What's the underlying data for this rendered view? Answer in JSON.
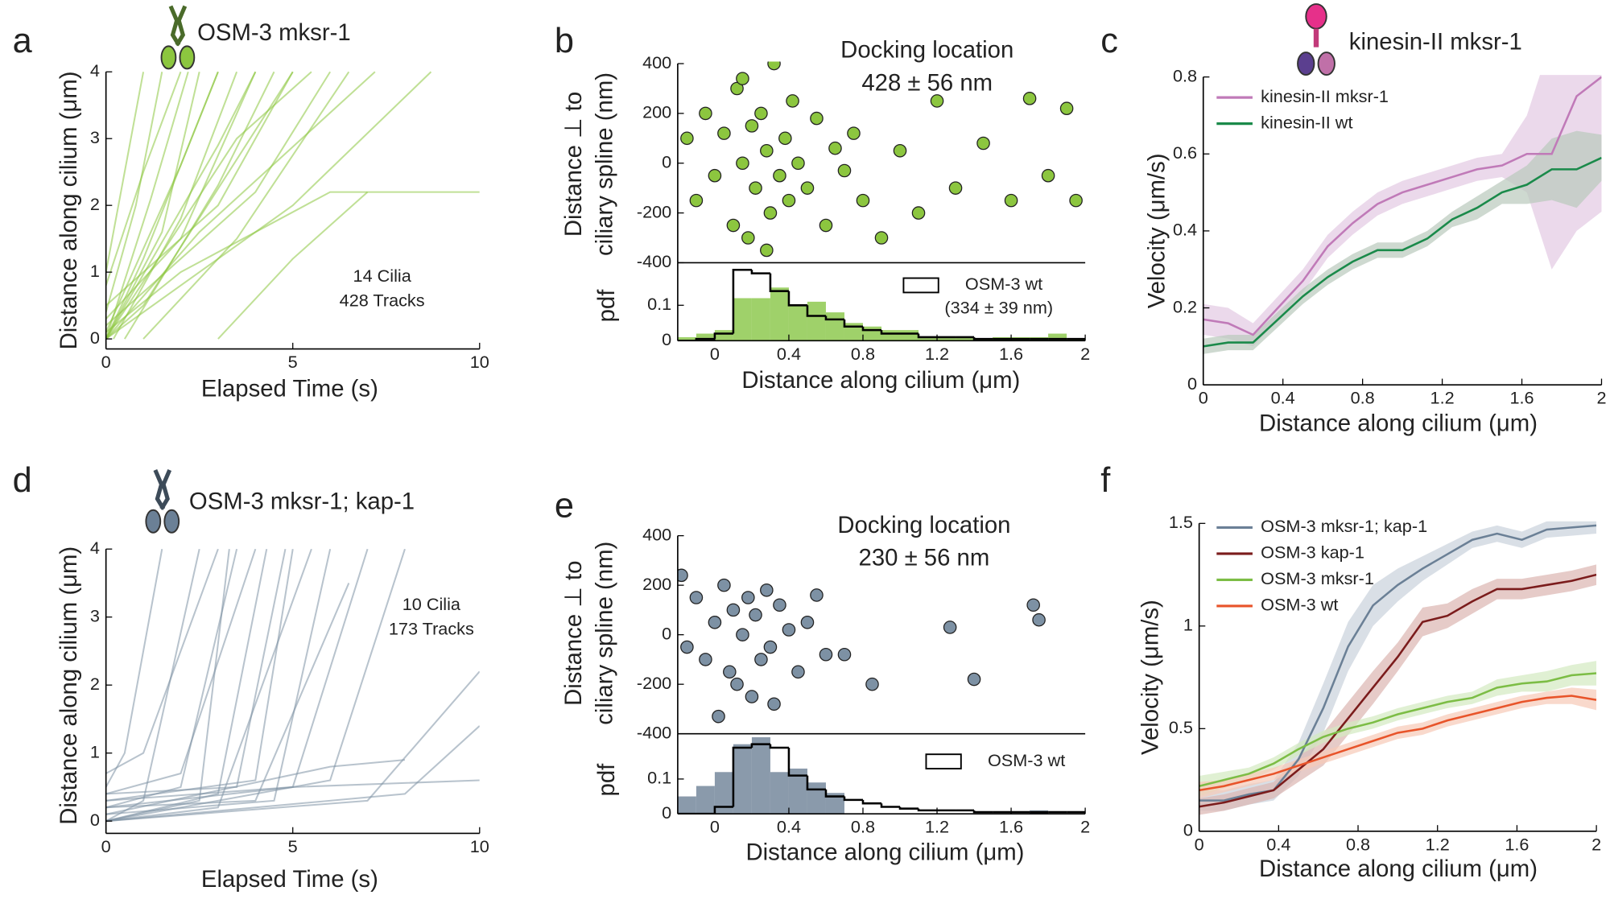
{
  "chart_data": [
    {
      "type": "tracks",
      "panel": "a",
      "title": "OSM-3 mksr-1",
      "annotation": [
        "14 Cilia",
        "428 Tracks"
      ],
      "xlabel": "Elapsed Time (s)",
      "ylabel": "Distance along cilium (μm)",
      "color": "#8cc63f",
      "xlim": [
        0,
        10
      ],
      "ylim": [
        -0.15,
        4
      ],
      "xticks": [
        0,
        5,
        10
      ],
      "yticks": [
        0,
        1,
        2,
        3,
        4
      ],
      "tracks": [
        {
          "x": [
            0,
            1,
            3
          ],
          "y": [
            0,
            1.2,
            4
          ]
        },
        {
          "x": [
            0,
            2,
            4
          ],
          "y": [
            0.3,
            1.5,
            4
          ]
        },
        {
          "x": [
            0,
            1.5,
            2.5
          ],
          "y": [
            0,
            1.6,
            4
          ]
        },
        {
          "x": [
            0,
            3,
            5
          ],
          "y": [
            0.5,
            2,
            4
          ]
        },
        {
          "x": [
            0.2,
            2,
            3.5
          ],
          "y": [
            0,
            1.8,
            4
          ]
        },
        {
          "x": [
            0,
            4,
            6
          ],
          "y": [
            0.2,
            2.2,
            4
          ]
        },
        {
          "x": [
            0.5,
            3,
            4.5
          ],
          "y": [
            0,
            2.3,
            4
          ]
        },
        {
          "x": [
            0,
            0.8,
            1.5
          ],
          "y": [
            0.4,
            2,
            4
          ]
        },
        {
          "x": [
            1,
            3.5,
            6.5
          ],
          "y": [
            0,
            1.5,
            4
          ]
        },
        {
          "x": [
            0,
            2.5,
            7.2
          ],
          "y": [
            0,
            1.6,
            4
          ]
        },
        {
          "x": [
            0,
            1,
            2
          ],
          "y": [
            0.8,
            2.5,
            4
          ]
        },
        {
          "x": [
            0,
            2,
            3
          ],
          "y": [
            0.1,
            2.6,
            4
          ]
        },
        {
          "x": [
            0,
            5,
            8.7
          ],
          "y": [
            0,
            2,
            4
          ]
        },
        {
          "x": [
            3,
            5,
            7
          ],
          "y": [
            0,
            1.2,
            2.2
          ]
        },
        {
          "x": [
            0,
            1.2,
            2.2
          ],
          "y": [
            0,
            2.1,
            4
          ]
        },
        {
          "x": [
            0,
            3,
            4
          ],
          "y": [
            0,
            2.9,
            4
          ]
        },
        {
          "x": [
            0,
            2,
            6,
            10
          ],
          "y": [
            0.1,
            1,
            2.2,
            2.2
          ]
        },
        {
          "x": [
            0,
            1,
            5
          ],
          "y": [
            0,
            0.5,
            4
          ]
        },
        {
          "x": [
            0,
            0.5,
            1
          ],
          "y": [
            1,
            2.5,
            4
          ]
        },
        {
          "x": [
            0,
            3.5,
            5.5
          ],
          "y": [
            0,
            3,
            4
          ]
        }
      ]
    },
    {
      "type": "scatter",
      "panel": "b",
      "title": [
        "Docking location",
        "428 ± 56 nm"
      ],
      "ylabel": [
        "Distance ⊥ to",
        "ciliary spline (nm)"
      ],
      "color": "#8cc63f",
      "xlim": [
        -0.2,
        2
      ],
      "ylim": [
        -400,
        400
      ],
      "yticks": [
        -400,
        -200,
        0,
        200,
        400
      ],
      "x": [
        -0.15,
        -0.1,
        -0.05,
        0,
        0.05,
        0.1,
        0.12,
        0.15,
        0.18,
        0.2,
        0.22,
        0.25,
        0.28,
        0.3,
        0.32,
        0.35,
        0.38,
        0.4,
        0.42,
        0.45,
        0.5,
        0.55,
        0.6,
        0.65,
        0.7,
        0.75,
        0.8,
        0.9,
        1.0,
        1.1,
        1.2,
        1.3,
        1.45,
        1.6,
        1.7,
        1.8,
        1.9,
        1.95,
        0.28,
        0.15
      ],
      "values": [
        100,
        -150,
        200,
        -50,
        120,
        -250,
        300,
        0,
        -300,
        150,
        -100,
        200,
        50,
        -200,
        400,
        -50,
        100,
        -150,
        250,
        0,
        -100,
        180,
        -250,
        60,
        -30,
        120,
        -150,
        -300,
        50,
        -200,
        250,
        -100,
        80,
        -150,
        260,
        -50,
        220,
        -150,
        -350,
        340
      ]
    },
    {
      "type": "histogram",
      "ylabel": "pdf",
      "xlabel": "Distance along cilium (μm)",
      "color": "#9fd16a",
      "xlim": [
        -0.2,
        2
      ],
      "ylim": [
        0,
        0.22
      ],
      "yticks": [
        0,
        0.1
      ],
      "xticks": [
        0,
        0.4,
        0.8,
        1.2,
        1.6,
        2
      ],
      "bins": [
        -0.2,
        -0.1,
        0,
        0.1,
        0.2,
        0.3,
        0.4,
        0.5,
        0.6,
        0.7,
        0.8,
        0.9,
        1,
        1.1,
        1.2,
        1.3,
        1.4,
        1.5,
        1.6,
        1.7,
        1.8,
        1.9,
        2
      ],
      "values": [
        0.01,
        0.02,
        0.03,
        0.12,
        0.12,
        0.15,
        0.1,
        0.11,
        0.08,
        0.05,
        0.04,
        0.03,
        0.03,
        0.01,
        0.01,
        0.01,
        0.005,
        0.01,
        0.01,
        0.01,
        0.02,
        0.005
      ],
      "reference": {
        "name": "OSM-3 wt",
        "note": "(334 ± 39 nm)",
        "color": "#000000",
        "values": [
          0,
          0.005,
          0.02,
          0.2,
          0.19,
          0.14,
          0.1,
          0.07,
          0.06,
          0.04,
          0.03,
          0.02,
          0.02,
          0.01,
          0.01,
          0.01,
          0.005,
          0.005,
          0.005,
          0.005,
          0.005,
          0.005
        ]
      }
    },
    {
      "type": "line",
      "panel": "c",
      "title": "kinesin-II mksr-1",
      "xlabel": "Distance along cilium (μm)",
      "ylabel": "Velocity (μm/s)",
      "xlim": [
        0,
        2
      ],
      "ylim": [
        0,
        0.8
      ],
      "xticks": [
        0,
        0.4,
        0.8,
        1.2,
        1.6,
        2
      ],
      "yticks": [
        0,
        0.2,
        0.4,
        0.6,
        0.8
      ],
      "x": [
        0,
        0.125,
        0.25,
        0.375,
        0.5,
        0.625,
        0.75,
        0.875,
        1,
        1.125,
        1.25,
        1.375,
        1.5,
        1.625,
        1.75,
        1.875,
        2
      ],
      "series": [
        {
          "name": "kinesin-II mksr-1",
          "color": "#c07ab8",
          "band_color": "#e3c9e3",
          "values": [
            0.17,
            0.16,
            0.13,
            0.2,
            0.27,
            0.36,
            0.42,
            0.47,
            0.5,
            0.52,
            0.54,
            0.56,
            0.57,
            0.6,
            0.6,
            0.75,
            0.8
          ],
          "error": [
            0.04,
            0.04,
            0.03,
            0.03,
            0.03,
            0.03,
            0.03,
            0.03,
            0.03,
            0.03,
            0.03,
            0.03,
            0.03,
            0.1,
            0.3,
            0.35,
            0.35
          ]
        },
        {
          "name": "kinesin-II wt",
          "color": "#1a8a4a",
          "band_color": "#b9c9bc",
          "values": [
            0.1,
            0.11,
            0.11,
            0.17,
            0.23,
            0.28,
            0.32,
            0.35,
            0.35,
            0.38,
            0.43,
            0.46,
            0.5,
            0.52,
            0.56,
            0.56,
            0.59
          ],
          "error": [
            0.02,
            0.02,
            0.02,
            0.02,
            0.02,
            0.02,
            0.02,
            0.02,
            0.02,
            0.02,
            0.02,
            0.03,
            0.03,
            0.05,
            0.08,
            0.1,
            0.06
          ]
        }
      ]
    },
    {
      "type": "tracks",
      "panel": "d",
      "title": "OSM-3 mksr-1; kap-1",
      "annotation": [
        "10 Cilia",
        "173 Tracks"
      ],
      "xlabel": "Elapsed Time (s)",
      "ylabel": "Distance along cilium (μm)",
      "color": "#7d91a4",
      "xlim": [
        0,
        10
      ],
      "ylim": [
        -0.18,
        4
      ],
      "xticks": [
        0,
        5,
        10
      ],
      "yticks": [
        0,
        1,
        2,
        3,
        4
      ],
      "tracks": [
        {
          "x": [
            0,
            1,
            2.5
          ],
          "y": [
            0,
            0.3,
            4
          ]
        },
        {
          "x": [
            0,
            2,
            3.5
          ],
          "y": [
            0.2,
            0.5,
            4
          ]
        },
        {
          "x": [
            0,
            3,
            4.3
          ],
          "y": [
            0,
            0.4,
            4
          ]
        },
        {
          "x": [
            0,
            4,
            5
          ],
          "y": [
            0.3,
            0.6,
            4
          ]
        },
        {
          "x": [
            0,
            4.5,
            6
          ],
          "y": [
            0.1,
            0.3,
            4
          ]
        },
        {
          "x": [
            0,
            5,
            7
          ],
          "y": [
            0.2,
            0.5,
            4
          ]
        },
        {
          "x": [
            0,
            6,
            8
          ],
          "y": [
            0,
            0.6,
            4
          ]
        },
        {
          "x": [
            0,
            0.5,
            1.5
          ],
          "y": [
            0.5,
            1,
            4
          ]
        },
        {
          "x": [
            0,
            3.5,
            4.8
          ],
          "y": [
            0.4,
            0.5,
            4
          ]
        },
        {
          "x": [
            0,
            2.5,
            3.3
          ],
          "y": [
            0,
            0.3,
            4
          ]
        },
        {
          "x": [
            0,
            5,
            10
          ],
          "y": [
            0.3,
            0.5,
            0.6
          ]
        },
        {
          "x": [
            0,
            7,
            10
          ],
          "y": [
            0,
            0.3,
            2.2
          ]
        },
        {
          "x": [
            0,
            8,
            10
          ],
          "y": [
            0,
            0.4,
            1.4
          ]
        },
        {
          "x": [
            0,
            6,
            8
          ],
          "y": [
            0.1,
            0.8,
            0.9
          ]
        },
        {
          "x": [
            0,
            4,
            6.5
          ],
          "y": [
            0.2,
            0.3,
            3.5
          ]
        },
        {
          "x": [
            0,
            1,
            3
          ],
          "y": [
            0.7,
            1,
            4
          ]
        },
        {
          "x": [
            0,
            2,
            4
          ],
          "y": [
            0.4,
            0.7,
            4
          ]
        },
        {
          "x": [
            0,
            3,
            5.5
          ],
          "y": [
            0,
            0.2,
            4
          ]
        }
      ]
    },
    {
      "type": "scatter",
      "panel": "e",
      "title": [
        "Docking location",
        "230 ± 56 nm"
      ],
      "ylabel": [
        "Distance ⊥ to",
        "ciliary spline (nm)"
      ],
      "color": "#7d91a4",
      "xlim": [
        -0.2,
        2
      ],
      "ylim": [
        -400,
        400
      ],
      "yticks": [
        -400,
        -200,
        0,
        200,
        400
      ],
      "x": [
        -0.18,
        -0.15,
        -0.1,
        -0.05,
        0,
        0.02,
        0.05,
        0.08,
        0.1,
        0.12,
        0.15,
        0.18,
        0.2,
        0.22,
        0.25,
        0.28,
        0.3,
        0.32,
        0.35,
        0.4,
        0.45,
        0.5,
        0.55,
        0.6,
        0.7,
        0.85,
        1.27,
        1.4,
        1.72,
        1.75
      ],
      "values": [
        240,
        -50,
        150,
        -100,
        50,
        -330,
        200,
        -150,
        100,
        -200,
        0,
        150,
        -250,
        80,
        -100,
        180,
        -50,
        -280,
        120,
        20,
        -150,
        50,
        160,
        -80,
        -80,
        -200,
        30,
        -180,
        120,
        60
      ]
    },
    {
      "type": "histogram",
      "ylabel": "pdf",
      "xlabel": "Distance along cilium (μm)",
      "color": "#8a9aab",
      "xlim": [
        -0.2,
        2
      ],
      "ylim": [
        0,
        0.23
      ],
      "yticks": [
        0,
        0.1
      ],
      "xticks": [
        0,
        0.4,
        0.8,
        1.2,
        1.6,
        2
      ],
      "bins": [
        -0.2,
        -0.1,
        0,
        0.1,
        0.2,
        0.3,
        0.4,
        0.5,
        0.6,
        0.7,
        0.8,
        0.9,
        1,
        1.1,
        1.2,
        1.3,
        1.4,
        1.5,
        1.6,
        1.7,
        1.8,
        1.9,
        2
      ],
      "values": [
        0.05,
        0.08,
        0.12,
        0.2,
        0.22,
        0.12,
        0.13,
        0.09,
        0.06,
        0,
        0,
        0,
        0,
        0,
        0,
        0,
        0,
        0,
        0,
        0.01,
        0,
        0
      ],
      "reference": {
        "name": "OSM-3 wt",
        "color": "#000000",
        "values": [
          0,
          0,
          0.02,
          0.19,
          0.2,
          0.19,
          0.11,
          0.07,
          0.05,
          0.04,
          0.03,
          0.02,
          0.015,
          0.01,
          0.01,
          0.01,
          0.005,
          0.005,
          0.005,
          0.005,
          0.005,
          0.005
        ]
      }
    },
    {
      "type": "line",
      "panel": "f",
      "xlabel": "Distance along cilium (μm)",
      "ylabel": "Velocity (μm/s)",
      "xlim": [
        0,
        2
      ],
      "ylim": [
        0,
        1.5
      ],
      "xticks": [
        0,
        0.4,
        0.8,
        1.2,
        1.6,
        2
      ],
      "yticks": [
        0,
        0.5,
        1,
        1.5
      ],
      "x": [
        0,
        0.125,
        0.25,
        0.375,
        0.5,
        0.625,
        0.75,
        0.875,
        1,
        1.125,
        1.25,
        1.375,
        1.5,
        1.625,
        1.75,
        1.875,
        2
      ],
      "series": [
        {
          "name": "OSM-3 mksr-1; kap-1",
          "color": "#6b8096",
          "band_color": "#c9d2dc",
          "values": [
            0.15,
            0.15,
            0.18,
            0.2,
            0.35,
            0.6,
            0.9,
            1.1,
            1.2,
            1.28,
            1.35,
            1.42,
            1.45,
            1.42,
            1.47,
            1.48,
            1.49
          ],
          "error": [
            0.05,
            0.05,
            0.05,
            0.05,
            0.08,
            0.12,
            0.12,
            0.1,
            0.08,
            0.06,
            0.05,
            0.04,
            0.04,
            0.04,
            0.04,
            0.04,
            0.04
          ]
        },
        {
          "name": "OSM-3 kap-1",
          "color": "#7b1c1c",
          "band_color": "#dcb5b0",
          "values": [
            0.12,
            0.14,
            0.17,
            0.2,
            0.3,
            0.4,
            0.55,
            0.7,
            0.85,
            1.02,
            1.05,
            1.12,
            1.18,
            1.18,
            1.2,
            1.22,
            1.25
          ],
          "error": [
            0.04,
            0.04,
            0.04,
            0.04,
            0.06,
            0.08,
            0.08,
            0.08,
            0.07,
            0.07,
            0.06,
            0.06,
            0.05,
            0.05,
            0.05,
            0.05,
            0.05
          ]
        },
        {
          "name": "OSM-3 mksr-1",
          "color": "#7cbd45",
          "band_color": "#d3e9c0",
          "values": [
            0.22,
            0.25,
            0.28,
            0.33,
            0.4,
            0.46,
            0.5,
            0.53,
            0.57,
            0.6,
            0.63,
            0.65,
            0.7,
            0.72,
            0.73,
            0.76,
            0.77
          ],
          "error": [
            0.05,
            0.04,
            0.03,
            0.03,
            0.03,
            0.03,
            0.03,
            0.03,
            0.03,
            0.03,
            0.03,
            0.03,
            0.04,
            0.04,
            0.05,
            0.05,
            0.06
          ]
        },
        {
          "name": "OSM-3 wt",
          "color": "#e8542a",
          "band_color": "#f6c9b6",
          "values": [
            0.2,
            0.22,
            0.25,
            0.28,
            0.32,
            0.36,
            0.4,
            0.44,
            0.48,
            0.5,
            0.54,
            0.57,
            0.6,
            0.63,
            0.65,
            0.66,
            0.64
          ],
          "error": [
            0.04,
            0.03,
            0.03,
            0.03,
            0.03,
            0.03,
            0.03,
            0.03,
            0.03,
            0.03,
            0.03,
            0.03,
            0.03,
            0.03,
            0.03,
            0.04,
            0.05
          ]
        }
      ]
    }
  ]
}
